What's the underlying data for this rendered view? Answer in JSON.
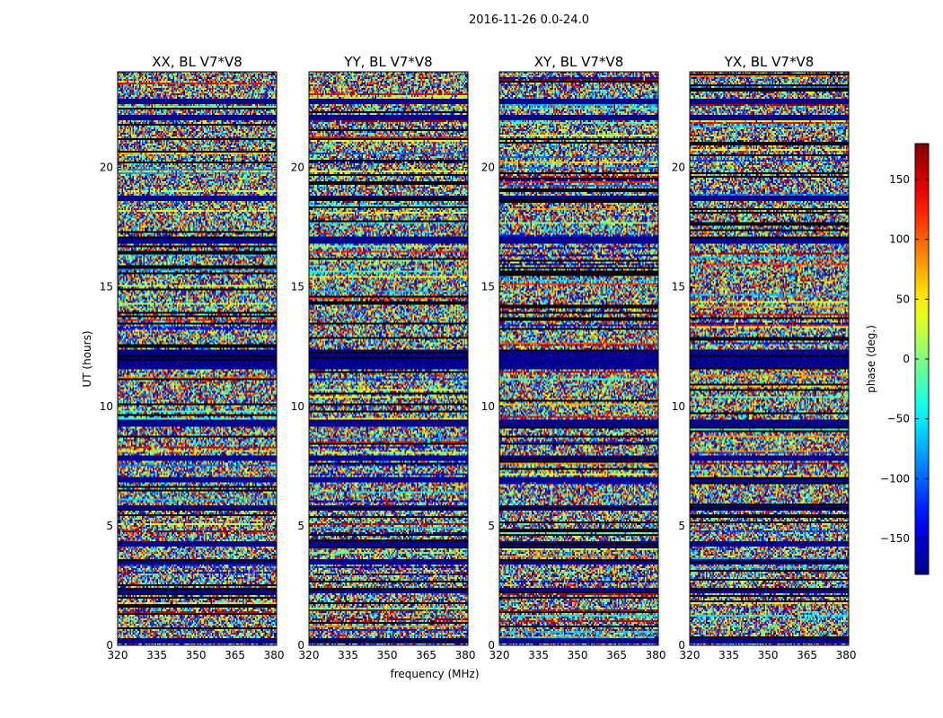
{
  "suptitle": "2016-11-26 0.0-24.0",
  "chart_data": {
    "type": "heatmap",
    "ylabel": "UT (hours)",
    "xlabel": "frequency (MHz)",
    "xlim": [
      320,
      381
    ],
    "ylim": [
      0,
      24
    ],
    "xticks": [
      320,
      335,
      350,
      365,
      380
    ],
    "yticks": [
      0,
      5,
      10,
      15,
      20
    ],
    "panels": [
      {
        "title": "XX, BL V7*V8"
      },
      {
        "title": "YY, BL V7*V8"
      },
      {
        "title": "XY, BL V7*V8"
      },
      {
        "title": "YX, BL V7*V8"
      }
    ],
    "colorbar": {
      "label": "phase (deg.)",
      "range": [
        -180,
        180
      ],
      "ticks": [
        -150,
        -100,
        -50,
        0,
        50,
        100,
        150
      ],
      "colormap": "jet"
    },
    "flagged_bands_hours": [
      [
        0.1,
        0.3
      ],
      [
        2.2,
        2.4
      ],
      [
        3.4,
        3.6
      ],
      [
        4.1,
        4.3
      ],
      [
        5.6,
        5.8
      ],
      [
        6.8,
        7.0
      ],
      [
        7.7,
        7.9
      ],
      [
        9.1,
        9.4
      ],
      [
        11.5,
        12.3
      ],
      [
        16.8,
        17.1
      ],
      [
        18.6,
        18.8
      ],
      [
        22.0,
        22.2
      ],
      [
        22.6,
        22.8
      ]
    ]
  }
}
